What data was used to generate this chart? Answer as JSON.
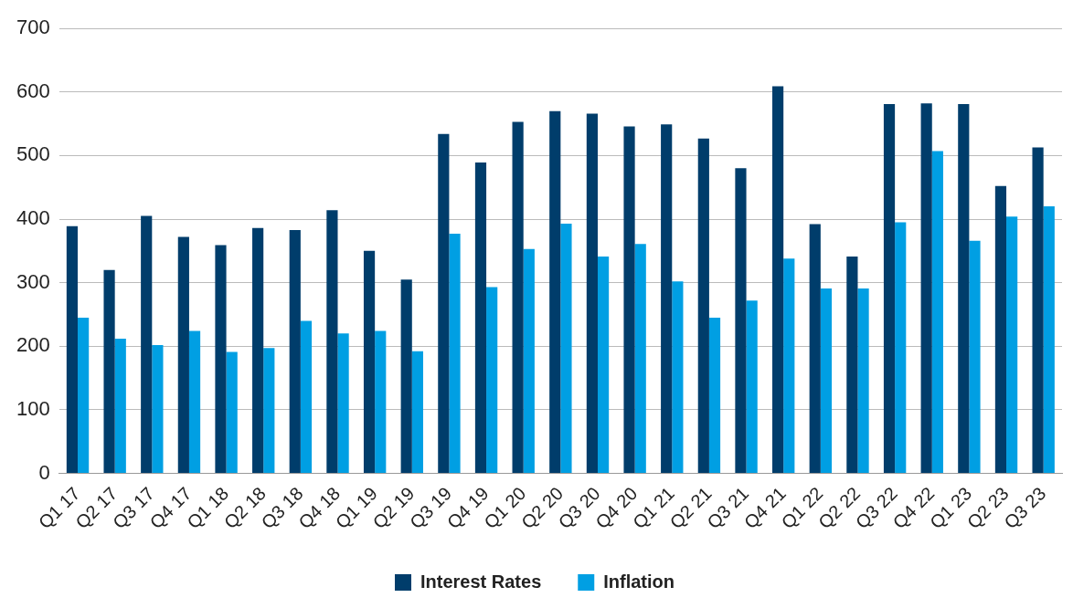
{
  "chart_data": {
    "type": "bar",
    "categories": [
      "Q1 17",
      "Q2 17",
      "Q3 17",
      "Q4 17",
      "Q1 18",
      "Q2 18",
      "Q3 18",
      "Q4 18",
      "Q1 19",
      "Q2 19",
      "Q3 19",
      "Q4 19",
      "Q1 20",
      "Q2 20",
      "Q3 20",
      "Q4 20",
      "Q1 21",
      "Q2 21",
      "Q3 21",
      "Q4 21",
      "Q1 22",
      "Q2 22",
      "Q3 22",
      "Q4 22",
      "Q1 23",
      "Q2 23",
      "Q3 23"
    ],
    "series": [
      {
        "name": "Interest Rates",
        "color": "#003d6b",
        "values": [
          389,
          320,
          405,
          372,
          359,
          386,
          383,
          414,
          350,
          305,
          534,
          489,
          553,
          570,
          566,
          546,
          549,
          527,
          480,
          609,
          392,
          341,
          581,
          582,
          581,
          452,
          513
        ]
      },
      {
        "name": "Inflation",
        "color": "#009fe3",
        "values": [
          245,
          212,
          202,
          224,
          191,
          197,
          240,
          220,
          224,
          192,
          377,
          293,
          353,
          393,
          341,
          361,
          302,
          245,
          272,
          338,
          291,
          291,
          395,
          507,
          366,
          404,
          420
        ]
      }
    ],
    "ylim": [
      0,
      700
    ],
    "yticks": [
      0,
      100,
      200,
      300,
      400,
      500,
      600,
      700
    ],
    "grid": "y",
    "legend": "bottom"
  }
}
